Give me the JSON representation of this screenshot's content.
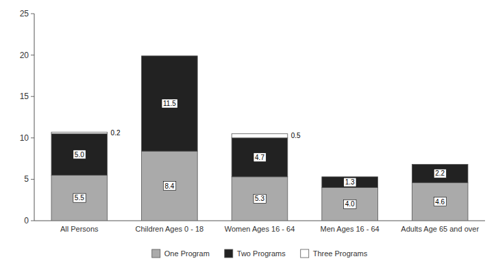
{
  "chart_data": {
    "type": "bar",
    "stacked": true,
    "data_labels": true,
    "grid": false,
    "legend": "bottom",
    "categories": [
      "All Persons",
      "Children Ages 0 - 18",
      "Women Ages 16 - 64",
      "Men Ages 16 - 64",
      "Adults Age 65 and over"
    ],
    "series": [
      {
        "name": "One Program",
        "color": "#aaaaaa",
        "values": [
          5.5,
          8.4,
          5.3,
          4.0,
          4.6
        ],
        "value_labels": [
          "5.5",
          "8.4",
          "5.3",
          "4.0",
          "4.6"
        ]
      },
      {
        "name": "Two Programs",
        "color": "#222222",
        "values": [
          5.0,
          11.5,
          4.7,
          1.3,
          2.2
        ],
        "value_labels": [
          "5.0",
          "11.5",
          "4.7",
          "1.3",
          "2.2"
        ]
      },
      {
        "name": "Three Programs",
        "color": "#ffffff",
        "values": [
          0.2,
          0.0,
          0.5,
          0.0,
          0.0
        ],
        "value_labels": [
          "0.2",
          null,
          "0.5",
          null,
          null
        ]
      }
    ],
    "ylim": [
      0,
      25
    ],
    "yticks": [
      0,
      5,
      10,
      15,
      20,
      25
    ]
  }
}
